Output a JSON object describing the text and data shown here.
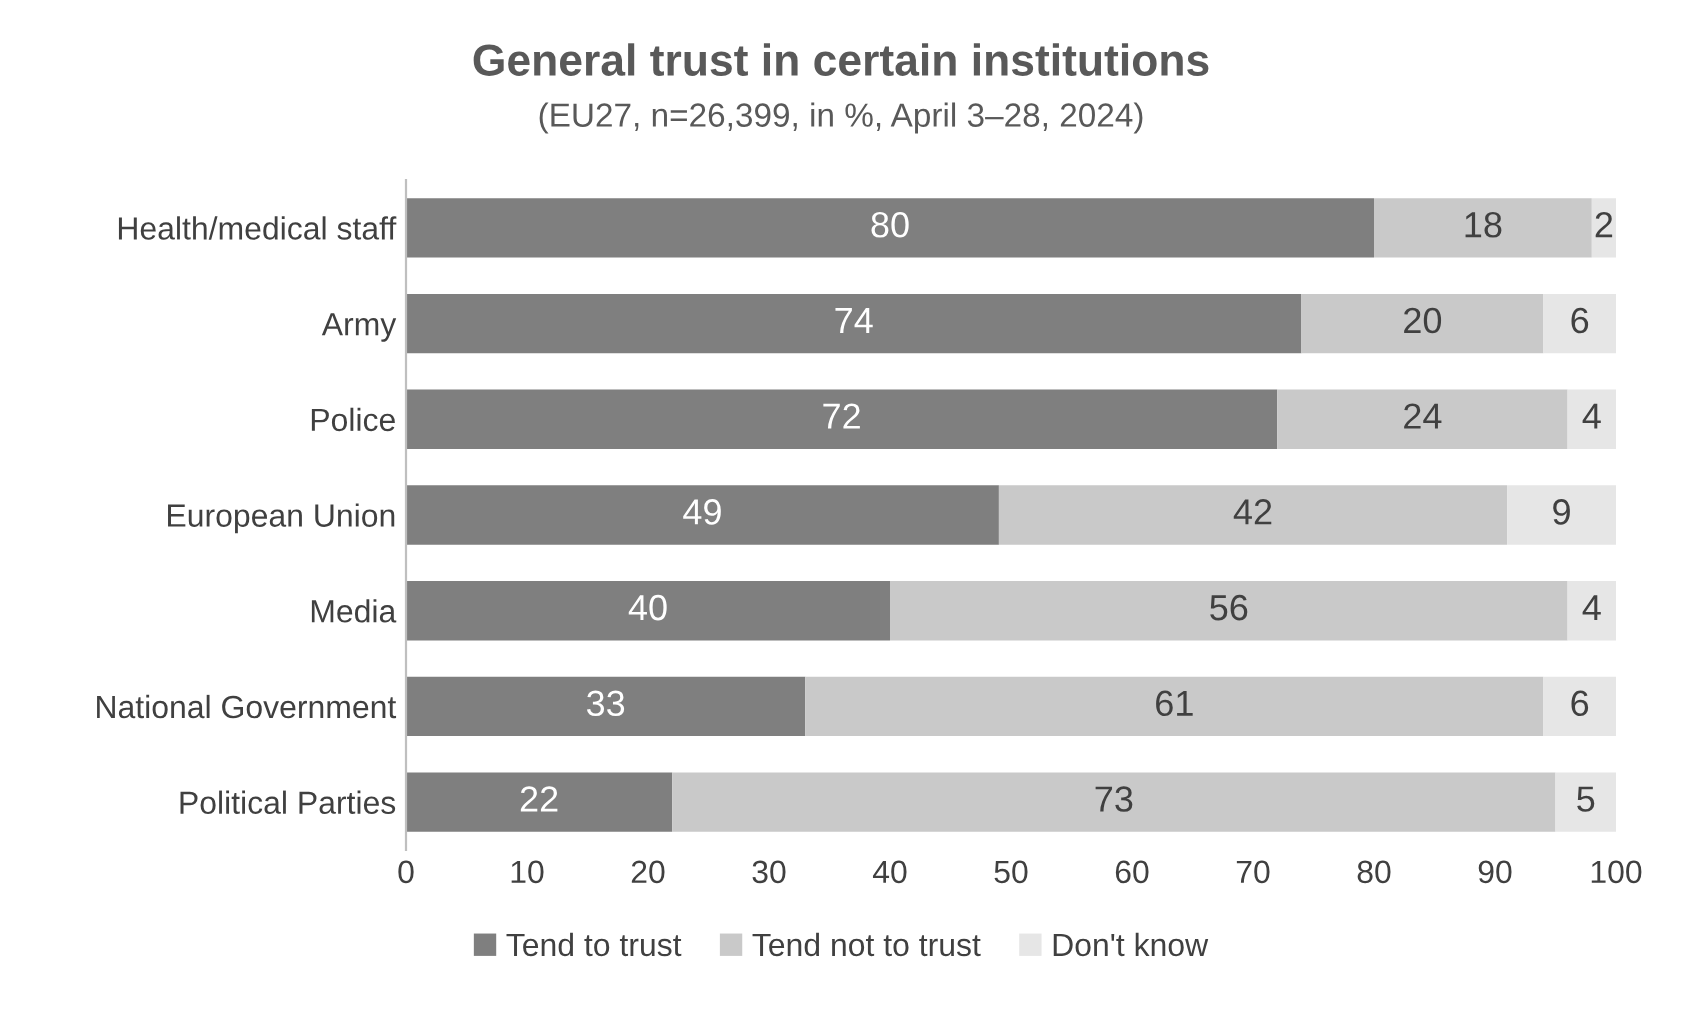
{
  "chart_data": {
    "type": "bar",
    "orientation": "horizontal",
    "stacked": true,
    "title": "General trust in certain institutions",
    "subtitle": "(EU27, n=26,399, in %, April 3–28, 2024)",
    "categories": [
      "Health/medical staff",
      "Army",
      "Police",
      "European Union",
      "Media",
      "National Government",
      "Political Parties"
    ],
    "series": [
      {
        "name": "Tend to trust",
        "color": "#7f7f7f",
        "values": [
          80,
          74,
          72,
          49,
          40,
          33,
          22
        ]
      },
      {
        "name": "Tend not to trust",
        "color": "#c9c9c9",
        "values": [
          18,
          20,
          24,
          42,
          56,
          61,
          73
        ]
      },
      {
        "name": "Don't know",
        "color": "#e6e6e6",
        "values": [
          2,
          6,
          4,
          9,
          4,
          6,
          5
        ]
      }
    ],
    "xlim": [
      0,
      100
    ],
    "xticks": [
      0,
      10,
      20,
      30,
      40,
      50,
      60,
      70,
      80,
      90,
      100
    ],
    "data_labels": true,
    "grid": false,
    "legend": "bottom"
  }
}
